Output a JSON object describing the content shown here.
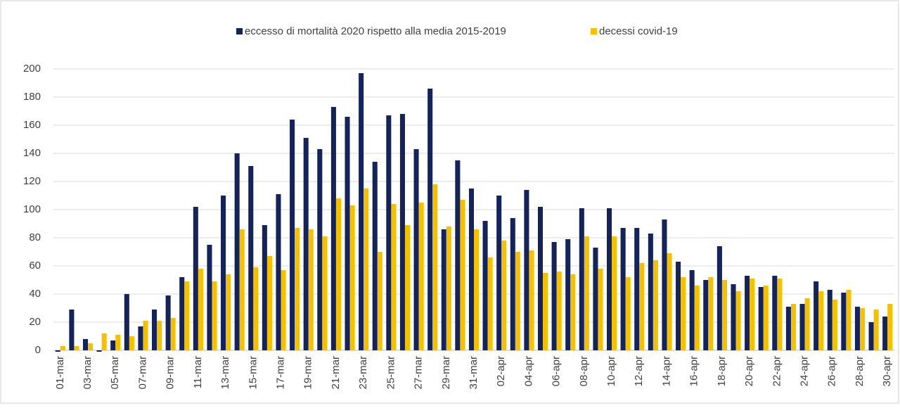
{
  "chart_data": {
    "type": "bar",
    "categories": [
      "01-mar",
      null,
      "03-mar",
      null,
      "05-mar",
      null,
      "07-mar",
      null,
      "09-mar",
      null,
      "11-mar",
      null,
      "13-mar",
      null,
      "15-mar",
      null,
      "17-mar",
      null,
      "19-mar",
      null,
      "21-mar",
      null,
      "23-mar",
      null,
      "25-mar",
      null,
      "27-mar",
      null,
      "29-mar",
      null,
      "31-mar",
      null,
      "02-apr",
      null,
      "04-apr",
      null,
      "06-apr",
      null,
      "08-apr",
      null,
      "10-apr",
      null,
      "12-apr",
      null,
      "14-apr",
      null,
      "16-apr",
      null,
      "18-apr",
      null,
      "20-apr",
      null,
      "22-apr",
      null,
      "24-apr",
      null,
      "26-apr",
      null,
      "28-apr",
      null,
      "30-apr"
    ],
    "series": [
      {
        "name": "eccesso di mortalità  2020 rispetto alla media 2015-2019",
        "color": "#14235a",
        "values": [
          -1,
          29,
          8,
          -1,
          7,
          40,
          17,
          29,
          39,
          52,
          102,
          75,
          110,
          140,
          131,
          89,
          111,
          164,
          151,
          143,
          173,
          166,
          197,
          134,
          167,
          168,
          143,
          186,
          86,
          135,
          115,
          92,
          110,
          94,
          114,
          102,
          77,
          79,
          101,
          73,
          101,
          87,
          87,
          83,
          93,
          63,
          57,
          50,
          74,
          47,
          53,
          45,
          53,
          31,
          33,
          49,
          43,
          41,
          31,
          20,
          24
        ]
      },
      {
        "name": "decessi covid-19",
        "color": "#f5c000",
        "values": [
          3,
          3,
          5,
          12,
          11,
          10,
          21,
          21,
          23,
          49,
          58,
          49,
          54,
          86,
          59,
          67,
          57,
          87,
          86,
          81,
          108,
          103,
          115,
          70,
          104,
          89,
          105,
          118,
          88,
          107,
          86,
          66,
          78,
          70,
          71,
          55,
          56,
          54,
          81,
          58,
          81,
          52,
          62,
          64,
          69,
          52,
          46,
          52,
          50,
          42,
          51,
          46,
          51,
          33,
          37,
          42,
          36,
          43,
          30,
          29,
          33
        ]
      }
    ],
    "ylim": [
      0,
      200
    ],
    "yticks": [
      0,
      20,
      40,
      60,
      80,
      100,
      120,
      140,
      160,
      180,
      200
    ],
    "grid": true
  }
}
